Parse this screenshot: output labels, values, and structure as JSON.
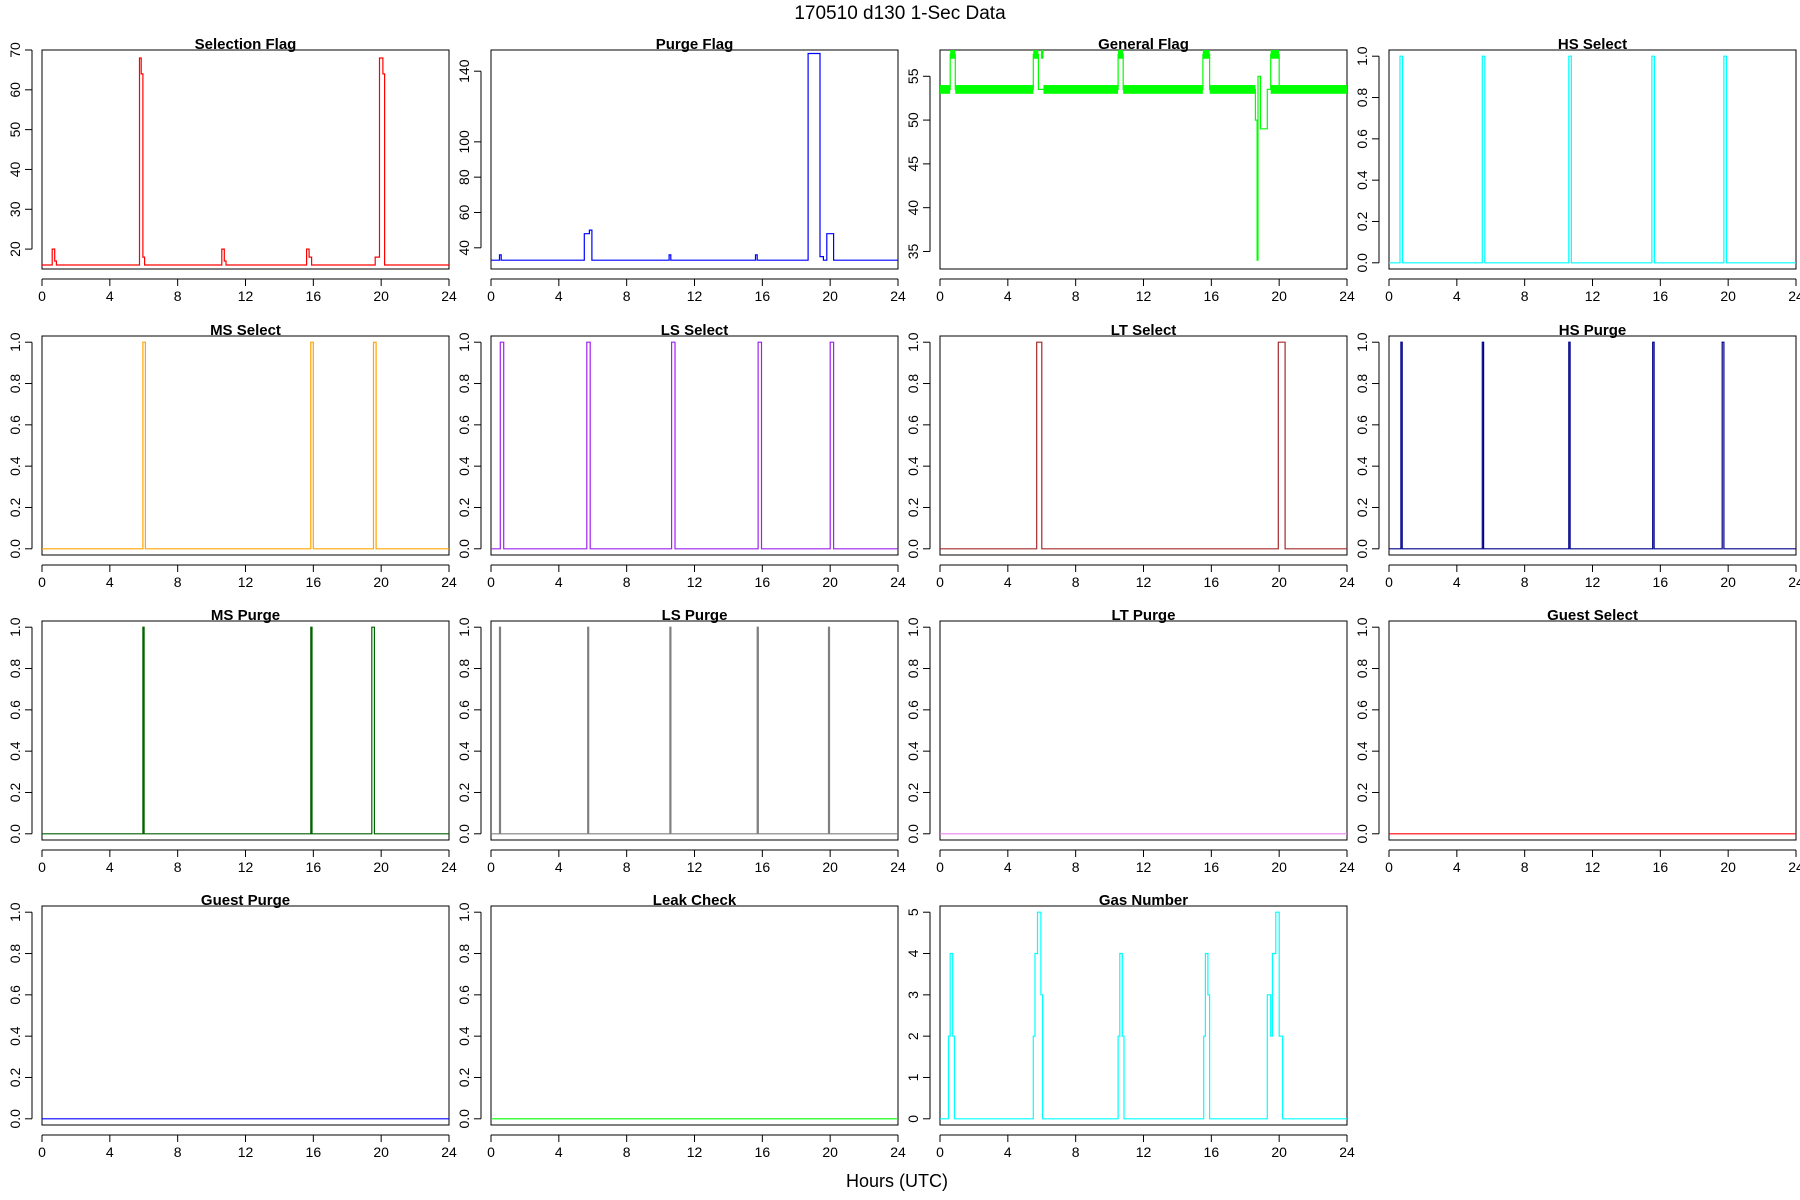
{
  "figure": {
    "title": "170510   d130   1-Sec Data",
    "xlabel": "Hours (UTC)"
  },
  "chart_data": [
    {
      "type": "line",
      "title": "Selection Flag",
      "color": "#ff0000",
      "xlim": [
        0,
        24
      ],
      "ylim": [
        15,
        70
      ],
      "xticks": [
        0,
        4,
        8,
        12,
        16,
        20,
        24
      ],
      "yticks": [
        20,
        30,
        40,
        50,
        60,
        70
      ],
      "x": [
        0,
        0.6,
        0.6,
        0.75,
        0.75,
        0.85,
        0.85,
        5.75,
        5.75,
        5.85,
        5.85,
        5.95,
        5.95,
        6.05,
        6.05,
        10.6,
        10.6,
        10.75,
        10.75,
        10.85,
        10.85,
        15.6,
        15.6,
        15.75,
        15.75,
        15.9,
        15.9,
        19.65,
        19.65,
        19.9,
        19.9,
        20.1,
        20.1,
        20.2,
        20.2,
        24
      ],
      "y": [
        16,
        16,
        20,
        20,
        17,
        17,
        16,
        16,
        68,
        68,
        64,
        64,
        18,
        18,
        16,
        16,
        20,
        20,
        17,
        17,
        16,
        16,
        20,
        20,
        18,
        18,
        16,
        16,
        18,
        18,
        68,
        68,
        64,
        64,
        16,
        16
      ]
    },
    {
      "type": "line",
      "title": "Purge Flag",
      "color": "#0000ff",
      "xlim": [
        0,
        24
      ],
      "ylim": [
        28,
        152
      ],
      "xticks": [
        0,
        4,
        8,
        12,
        16,
        20,
        24
      ],
      "yticks": [
        40,
        60,
        80,
        100,
        140
      ],
      "x": [
        0,
        0.5,
        0.5,
        0.6,
        0.6,
        5.5,
        5.5,
        5.8,
        5.8,
        5.95,
        5.95,
        10.5,
        10.5,
        10.6,
        10.6,
        15.6,
        15.6,
        15.7,
        15.7,
        18.7,
        18.7,
        19.4,
        19.4,
        19.6,
        19.6,
        19.8,
        19.8,
        20.2,
        20.2,
        24
      ],
      "y": [
        33,
        33,
        36,
        36,
        33,
        33,
        48,
        48,
        50,
        50,
        33,
        33,
        36,
        36,
        33,
        33,
        36,
        36,
        33,
        33,
        150,
        150,
        35,
        35,
        33,
        33,
        48,
        48,
        33,
        33
      ]
    },
    {
      "type": "line",
      "title": "General Flag",
      "color": "#00ff00",
      "xlim": [
        0,
        24
      ],
      "ylim": [
        33,
        58
      ],
      "xticks": [
        0,
        4,
        8,
        12,
        16,
        20,
        24
      ],
      "yticks": [
        35,
        40,
        45,
        50,
        55
      ],
      "x": [
        0,
        0.6,
        0.6,
        0.9,
        0.9,
        5.5,
        5.5,
        5.8,
        5.8,
        6.1,
        6.1,
        10.5,
        10.5,
        10.8,
        10.8,
        15.5,
        15.5,
        15.9,
        15.9,
        18.6,
        18.6,
        18.7,
        18.7,
        18.75,
        18.75,
        18.9,
        18.9,
        19.3,
        19.3,
        19.5,
        19.5,
        20.0,
        20.0,
        24
      ],
      "y": [
        53.5,
        53.5,
        57.5,
        57.5,
        53.5,
        53.5,
        57.5,
        57.5,
        53.5,
        53.5,
        53.5,
        53.5,
        57.5,
        57.5,
        53.5,
        53.5,
        57.5,
        57.5,
        53.5,
        53.5,
        50,
        50,
        34,
        34,
        55,
        55,
        49,
        49,
        53.5,
        53.5,
        57.5,
        57.5,
        53.5,
        53.5
      ]
    },
    {
      "type": "line",
      "title": "HS Select",
      "color": "#00ffff",
      "xlim": [
        0,
        24
      ],
      "ylim": [
        -0.03,
        1.03
      ],
      "xticks": [
        0,
        4,
        8,
        12,
        16,
        20,
        24
      ],
      "yticks": [
        0.0,
        0.2,
        0.4,
        0.6,
        0.8,
        1.0
      ],
      "x": [
        0,
        0.65,
        0.65,
        0.8,
        0.8,
        5.5,
        5.5,
        5.65,
        5.65,
        10.6,
        10.6,
        10.75,
        10.75,
        15.5,
        15.5,
        15.65,
        15.65,
        19.75,
        19.75,
        19.9,
        19.9,
        24
      ],
      "y": [
        0,
        0,
        1,
        1,
        0,
        0,
        1,
        1,
        0,
        0,
        1,
        1,
        0,
        0,
        1,
        1,
        0,
        0,
        1,
        1,
        0,
        0
      ]
    },
    {
      "type": "line",
      "title": "MS Select",
      "color": "#ffa500",
      "xlim": [
        0,
        24
      ],
      "ylim": [
        -0.03,
        1.03
      ],
      "xticks": [
        0,
        4,
        8,
        12,
        16,
        20,
        24
      ],
      "yticks": [
        0.0,
        0.2,
        0.4,
        0.6,
        0.8,
        1.0
      ],
      "x": [
        0,
        5.95,
        5.95,
        6.1,
        6.1,
        15.85,
        15.85,
        16.0,
        16.0,
        19.55,
        19.55,
        19.7,
        19.7,
        24
      ],
      "y": [
        0,
        0,
        1,
        1,
        0,
        0,
        1,
        1,
        0,
        0,
        1,
        1,
        0,
        0
      ]
    },
    {
      "type": "line",
      "title": "LS Select",
      "color": "#a020f0",
      "xlim": [
        0,
        24
      ],
      "ylim": [
        -0.03,
        1.03
      ],
      "xticks": [
        0,
        4,
        8,
        12,
        16,
        20,
        24
      ],
      "yticks": [
        0.0,
        0.2,
        0.4,
        0.6,
        0.8,
        1.0
      ],
      "x": [
        0,
        0.55,
        0.55,
        0.75,
        0.75,
        5.65,
        5.65,
        5.85,
        5.85,
        10.65,
        10.65,
        10.85,
        10.85,
        15.75,
        15.75,
        15.95,
        15.95,
        20.0,
        20.0,
        20.2,
        20.2,
        24
      ],
      "y": [
        0,
        0,
        1,
        1,
        0,
        0,
        1,
        1,
        0,
        0,
        1,
        1,
        0,
        0,
        1,
        1,
        0,
        0,
        1,
        1,
        0,
        0
      ]
    },
    {
      "type": "line",
      "title": "LT Select",
      "color": "#a52a2a",
      "xlim": [
        0,
        24
      ],
      "ylim": [
        -0.03,
        1.03
      ],
      "xticks": [
        0,
        4,
        8,
        12,
        16,
        20,
        24
      ],
      "yticks": [
        0.0,
        0.2,
        0.4,
        0.6,
        0.8,
        1.0
      ],
      "x": [
        0,
        5.7,
        5.7,
        6.0,
        6.0,
        19.95,
        19.95,
        20.35,
        20.35,
        24
      ],
      "y": [
        0,
        0,
        1,
        1,
        0,
        0,
        1,
        1,
        0,
        0
      ]
    },
    {
      "type": "line",
      "title": "HS Purge",
      "color": "#00008b",
      "xlim": [
        0,
        24
      ],
      "ylim": [
        -0.03,
        1.03
      ],
      "xticks": [
        0,
        4,
        8,
        12,
        16,
        20,
        24
      ],
      "yticks": [
        0.0,
        0.2,
        0.4,
        0.6,
        0.8,
        1.0
      ],
      "x": [
        0,
        0.7,
        0.7,
        0.78,
        0.78,
        5.5,
        5.5,
        5.58,
        5.58,
        10.6,
        10.6,
        10.68,
        10.68,
        15.55,
        15.55,
        15.63,
        15.63,
        19.65,
        19.65,
        19.75,
        19.75,
        24
      ],
      "y": [
        0,
        0,
        1,
        1,
        0,
        0,
        1,
        1,
        0,
        0,
        1,
        1,
        0,
        0,
        1,
        1,
        0,
        0,
        1,
        1,
        0,
        0
      ]
    },
    {
      "type": "line",
      "title": "MS Purge",
      "color": "#006400",
      "xlim": [
        0,
        24
      ],
      "ylim": [
        -0.03,
        1.03
      ],
      "xticks": [
        0,
        4,
        8,
        12,
        16,
        20,
        24
      ],
      "yticks": [
        0.0,
        0.2,
        0.4,
        0.6,
        0.8,
        1.0
      ],
      "x": [
        0,
        5.95,
        5.95,
        6.02,
        6.02,
        15.85,
        15.85,
        15.92,
        15.92,
        19.45,
        19.45,
        19.6,
        19.6,
        24
      ],
      "y": [
        0,
        0,
        1,
        1,
        0,
        0,
        1,
        1,
        0,
        0,
        1,
        1,
        0,
        0
      ]
    },
    {
      "type": "line",
      "title": "LS Purge",
      "color": "#808080",
      "xlim": [
        0,
        24
      ],
      "ylim": [
        -0.03,
        1.03
      ],
      "xticks": [
        0,
        4,
        8,
        12,
        16,
        20,
        24
      ],
      "yticks": [
        0.0,
        0.2,
        0.4,
        0.6,
        0.8,
        1.0
      ],
      "x": [
        0,
        0.5,
        0.5,
        0.56,
        0.56,
        5.7,
        5.7,
        5.76,
        5.76,
        10.55,
        10.55,
        10.61,
        10.61,
        15.7,
        15.7,
        15.76,
        15.76,
        19.9,
        19.9,
        19.96,
        19.96,
        24
      ],
      "y": [
        0,
        0,
        1,
        1,
        0,
        0,
        1,
        1,
        0,
        0,
        1,
        1,
        0,
        0,
        1,
        1,
        0,
        0,
        1,
        1,
        0,
        0
      ]
    },
    {
      "type": "line",
      "title": "LT Purge",
      "color": "#ee82ee",
      "xlim": [
        0,
        24
      ],
      "ylim": [
        -0.03,
        1.03
      ],
      "xticks": [
        0,
        4,
        8,
        12,
        16,
        20,
        24
      ],
      "yticks": [
        0.0,
        0.2,
        0.4,
        0.6,
        0.8,
        1.0
      ],
      "x": [
        0,
        24
      ],
      "y": [
        0,
        0
      ]
    },
    {
      "type": "line",
      "title": "Guest Select",
      "color": "#ff0000",
      "xlim": [
        0,
        24
      ],
      "ylim": [
        -0.03,
        1.03
      ],
      "xticks": [
        0,
        4,
        8,
        12,
        16,
        20,
        24
      ],
      "yticks": [
        0.0,
        0.2,
        0.4,
        0.6,
        0.8,
        1.0
      ],
      "x": [
        0,
        24
      ],
      "y": [
        0,
        0
      ]
    },
    {
      "type": "line",
      "title": "Guest Purge",
      "color": "#0000ff",
      "xlim": [
        0,
        24
      ],
      "ylim": [
        -0.03,
        1.03
      ],
      "xticks": [
        0,
        4,
        8,
        12,
        16,
        20,
        24
      ],
      "yticks": [
        0.0,
        0.2,
        0.4,
        0.6,
        0.8,
        1.0
      ],
      "x": [
        0,
        24
      ],
      "y": [
        0,
        0
      ]
    },
    {
      "type": "line",
      "title": "Leak Check",
      "color": "#00ff00",
      "xlim": [
        0,
        24
      ],
      "ylim": [
        -0.03,
        1.03
      ],
      "xticks": [
        0,
        4,
        8,
        12,
        16,
        20,
        24
      ],
      "yticks": [
        0.0,
        0.2,
        0.4,
        0.6,
        0.8,
        1.0
      ],
      "x": [
        0,
        24
      ],
      "y": [
        0,
        0
      ]
    },
    {
      "type": "line",
      "title": "Gas Number",
      "color": "#00ffff",
      "xlim": [
        0,
        24
      ],
      "ylim": [
        -0.15,
        5.15
      ],
      "xticks": [
        0,
        4,
        8,
        12,
        16,
        20,
        24
      ],
      "yticks": [
        0,
        1,
        2,
        3,
        4,
        5
      ],
      "x": [
        0,
        0.5,
        0.5,
        0.6,
        0.6,
        0.75,
        0.75,
        0.85,
        0.85,
        5.5,
        5.5,
        5.6,
        5.6,
        5.75,
        5.75,
        5.95,
        5.95,
        6.05,
        6.05,
        10.5,
        10.5,
        10.6,
        10.6,
        10.75,
        10.75,
        10.85,
        10.85,
        15.55,
        15.55,
        15.65,
        15.65,
        15.8,
        15.8,
        15.9,
        15.9,
        18.6,
        18.6,
        19.3,
        19.3,
        19.5,
        19.5,
        19.6,
        19.6,
        19.8,
        19.8,
        20.0,
        20.0,
        20.2,
        20.2,
        24
      ],
      "y": [
        0,
        0,
        2,
        2,
        4,
        4,
        2,
        2,
        0,
        0,
        2,
        2,
        4,
        4,
        5,
        5,
        3,
        3,
        0,
        0,
        2,
        2,
        4,
        4,
        2,
        2,
        0,
        0,
        2,
        2,
        4,
        4,
        3,
        3,
        0,
        0,
        0,
        0,
        3,
        3,
        2,
        2,
        4,
        4,
        5,
        5,
        2,
        2,
        0,
        0
      ]
    }
  ]
}
